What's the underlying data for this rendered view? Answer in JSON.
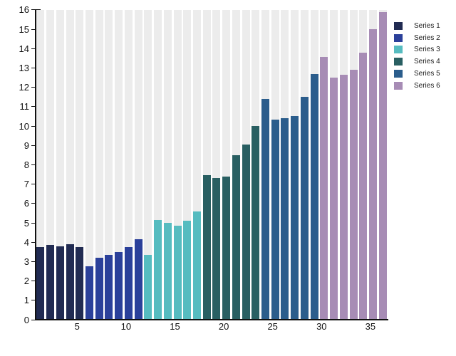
{
  "chart_data": {
    "type": "bar",
    "title": "",
    "xlabel": "",
    "ylabel": "",
    "ylim": [
      0,
      16
    ],
    "y_ticks": [
      0,
      1,
      2,
      3,
      4,
      5,
      6,
      7,
      8,
      9,
      10,
      11,
      12,
      13,
      14,
      15,
      16
    ],
    "x_tick_labels": [
      5,
      10,
      15,
      20,
      25,
      30,
      35
    ],
    "grid": "vertical background stripes, no horizontal gridlines",
    "legend_position": "right-top",
    "series": [
      {
        "name": "Series 1",
        "color": "#212b52",
        "x": [
          1,
          2,
          3,
          4,
          5
        ],
        "values": [
          3.75,
          3.85,
          3.8,
          3.9,
          3.75
        ]
      },
      {
        "name": "Series 2",
        "color": "#2b409a",
        "x": [
          6,
          7,
          8,
          9,
          10,
          11
        ],
        "values": [
          2.75,
          3.2,
          3.35,
          3.5,
          3.75,
          4.15
        ]
      },
      {
        "name": "Series 3",
        "color": "#56bcc0",
        "x": [
          12,
          13,
          14,
          15,
          16,
          17
        ],
        "values": [
          3.35,
          5.15,
          5.0,
          4.85,
          5.1,
          5.6
        ]
      },
      {
        "name": "Series 4",
        "color": "#295f62",
        "x": [
          18,
          19,
          20,
          21,
          22,
          23
        ],
        "values": [
          7.45,
          7.3,
          7.4,
          8.5,
          9.05,
          10.0
        ]
      },
      {
        "name": "Series 5",
        "color": "#2b5d8c",
        "x": [
          24,
          25,
          26,
          27,
          28,
          29
        ],
        "values": [
          11.4,
          10.35,
          10.4,
          10.5,
          11.5,
          12.7
        ]
      },
      {
        "name": "Series 6",
        "color": "#a78cb5",
        "x": [
          30,
          31,
          32,
          33,
          34,
          35,
          36
        ],
        "values": [
          13.55,
          12.5,
          12.65,
          12.9,
          13.8,
          15.0,
          15.9
        ]
      }
    ],
    "style": {
      "stripe_color": "#ececec",
      "background_color": "#ffffff",
      "axis_color": "#111111",
      "tick_label_color": "#111111",
      "legend_label_color": "#1a1a1a"
    }
  }
}
